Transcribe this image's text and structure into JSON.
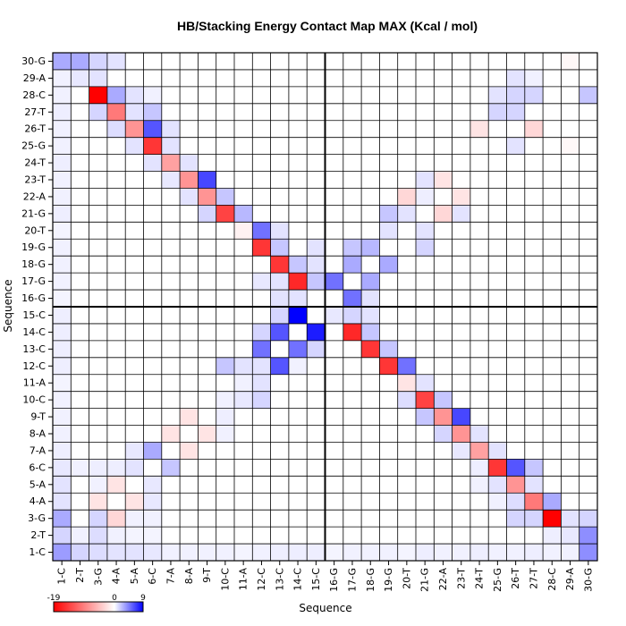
{
  "chart_data": {
    "type": "heatmap",
    "title": "HB/Stacking Energy Contact Map MAX (Kcal / mol)",
    "xlabel": "Sequence",
    "ylabel": "Sequence",
    "labels": [
      "1-C",
      "2-T",
      "3-G",
      "4-A",
      "5-A",
      "6-C",
      "7-A",
      "8-A",
      "9-T",
      "10-C",
      "11-A",
      "12-C",
      "13-C",
      "14-C",
      "15-C",
      "16-G",
      "17-G",
      "18-G",
      "19-G",
      "20-T",
      "21-G",
      "22-A",
      "23-T",
      "24-T",
      "25-G",
      "26-T",
      "27-T",
      "28-C",
      "29-A",
      "30-G"
    ],
    "colorbar": {
      "min": -19,
      "mid": 0,
      "max": 9,
      "tick_labels": [
        "-19",
        "0",
        "9"
      ]
    },
    "colors": {
      "negative": "#ff0000",
      "zero": "#ffffff",
      "positive": "#0000ff"
    },
    "grid": true,
    "divider_after_index": 15,
    "cells": [
      [
        1,
        1,
        3.5
      ],
      [
        1,
        2,
        1.5
      ],
      [
        1,
        3,
        1.2
      ],
      [
        1,
        4,
        1
      ],
      [
        1,
        5,
        1
      ],
      [
        1,
        6,
        0.8
      ],
      [
        1,
        7,
        0.5
      ],
      [
        1,
        8,
        0.5
      ],
      [
        1,
        9,
        0.5
      ],
      [
        1,
        10,
        0.5
      ],
      [
        1,
        11,
        0.4
      ],
      [
        1,
        12,
        0.5
      ],
      [
        1,
        13,
        0.6
      ],
      [
        1,
        14,
        0.6
      ],
      [
        1,
        15,
        0.6
      ],
      [
        1,
        16,
        0.4
      ],
      [
        1,
        17,
        0.5
      ],
      [
        1,
        18,
        0.5
      ],
      [
        1,
        19,
        0.5
      ],
      [
        1,
        20,
        0.4
      ],
      [
        1,
        21,
        0.6
      ],
      [
        1,
        22,
        0.5
      ],
      [
        1,
        23,
        0.5
      ],
      [
        1,
        24,
        0.6
      ],
      [
        1,
        25,
        0.5
      ],
      [
        1,
        26,
        0.5
      ],
      [
        1,
        27,
        0.6
      ],
      [
        1,
        28,
        0.5
      ],
      [
        1,
        29,
        0.5
      ],
      [
        1,
        30,
        4
      ],
      [
        2,
        1,
        1.5
      ],
      [
        2,
        2,
        0.5
      ],
      [
        2,
        3,
        1.2
      ],
      [
        2,
        4,
        0.5
      ],
      [
        2,
        5,
        0.4
      ],
      [
        2,
        6,
        0.4
      ],
      [
        2,
        28,
        0.6
      ],
      [
        2,
        29,
        0.8
      ],
      [
        2,
        30,
        4
      ],
      [
        3,
        1,
        3
      ],
      [
        3,
        3,
        1.5
      ],
      [
        3,
        4,
        -3
      ],
      [
        3,
        5,
        0.5
      ],
      [
        3,
        6,
        0.5
      ],
      [
        3,
        26,
        1.5
      ],
      [
        3,
        27,
        1.5
      ],
      [
        3,
        28,
        -19
      ],
      [
        3,
        29,
        1
      ],
      [
        3,
        30,
        1.5
      ],
      [
        4,
        1,
        1
      ],
      [
        4,
        3,
        -2
      ],
      [
        4,
        5,
        -2
      ],
      [
        4,
        6,
        0.8
      ],
      [
        4,
        25,
        0.5
      ],
      [
        4,
        26,
        1.2
      ],
      [
        4,
        27,
        -10
      ],
      [
        4,
        28,
        3
      ],
      [
        5,
        1,
        1
      ],
      [
        5,
        3,
        0.5
      ],
      [
        5,
        4,
        -2
      ],
      [
        5,
        6,
        0.8
      ],
      [
        5,
        24,
        0.5
      ],
      [
        5,
        25,
        1
      ],
      [
        5,
        26,
        -8
      ],
      [
        5,
        27,
        1
      ],
      [
        6,
        1,
        0.8
      ],
      [
        6,
        2,
        0.5
      ],
      [
        6,
        3,
        0.6
      ],
      [
        6,
        4,
        0.6
      ],
      [
        6,
        5,
        1
      ],
      [
        6,
        7,
        2
      ],
      [
        6,
        24,
        0.6
      ],
      [
        6,
        25,
        -15
      ],
      [
        6,
        26,
        6
      ],
      [
        6,
        27,
        2
      ],
      [
        7,
        1,
        0.6
      ],
      [
        7,
        5,
        0.8
      ],
      [
        7,
        6,
        3
      ],
      [
        7,
        8,
        -2
      ],
      [
        7,
        23,
        0.8
      ],
      [
        7,
        24,
        -7
      ],
      [
        7,
        25,
        1
      ],
      [
        8,
        1,
        0.5
      ],
      [
        8,
        7,
        -2
      ],
      [
        8,
        9,
        -2
      ],
      [
        8,
        10,
        0.5
      ],
      [
        8,
        22,
        1.5
      ],
      [
        8,
        23,
        -8
      ],
      [
        8,
        24,
        1
      ],
      [
        9,
        1,
        0.5
      ],
      [
        9,
        8,
        -2
      ],
      [
        9,
        10,
        0.6
      ],
      [
        9,
        21,
        2
      ],
      [
        9,
        22,
        -8
      ],
      [
        9,
        23,
        6.5
      ],
      [
        10,
        1,
        0.5
      ],
      [
        10,
        10,
        0.5
      ],
      [
        10,
        11,
        0.8
      ],
      [
        10,
        12,
        1.5
      ],
      [
        10,
        20,
        1.2
      ],
      [
        10,
        21,
        -14
      ],
      [
        10,
        22,
        2
      ],
      [
        11,
        1,
        0.4
      ],
      [
        11,
        11,
        0.5
      ],
      [
        11,
        12,
        1
      ],
      [
        11,
        20,
        -2
      ],
      [
        11,
        21,
        1
      ],
      [
        12,
        1,
        0.6
      ],
      [
        12,
        10,
        2
      ],
      [
        12,
        11,
        1
      ],
      [
        12,
        12,
        1
      ],
      [
        12,
        13,
        6
      ],
      [
        12,
        14,
        0.5
      ],
      [
        12,
        19,
        -15
      ],
      [
        12,
        20,
        5
      ],
      [
        13,
        1,
        0.6
      ],
      [
        13,
        12,
        5
      ],
      [
        13,
        14,
        5
      ],
      [
        13,
        15,
        1.5
      ],
      [
        13,
        18,
        -15
      ],
      [
        13,
        19,
        2
      ],
      [
        14,
        1,
        0.6
      ],
      [
        14,
        12,
        1.5
      ],
      [
        14,
        13,
        6
      ],
      [
        14,
        15,
        8
      ],
      [
        14,
        17,
        -16
      ],
      [
        14,
        18,
        2
      ],
      [
        15,
        1,
        0.6
      ],
      [
        15,
        13,
        1.5
      ],
      [
        15,
        14,
        9
      ],
      [
        15,
        16,
        0.8
      ],
      [
        15,
        17,
        1.5
      ],
      [
        15,
        18,
        1
      ],
      [
        16,
        1,
        0.4
      ],
      [
        16,
        13,
        1
      ],
      [
        16,
        14,
        1
      ],
      [
        16,
        17,
        5
      ],
      [
        16,
        18,
        1
      ],
      [
        17,
        1,
        0.5
      ],
      [
        17,
        12,
        0.8
      ],
      [
        17,
        13,
        1
      ],
      [
        17,
        14,
        -16
      ],
      [
        17,
        15,
        2
      ],
      [
        17,
        16,
        5
      ],
      [
        17,
        18,
        3
      ],
      [
        18,
        1,
        0.5
      ],
      [
        18,
        13,
        -15
      ],
      [
        18,
        14,
        2
      ],
      [
        18,
        15,
        1
      ],
      [
        18,
        17,
        3
      ],
      [
        18,
        19,
        3
      ],
      [
        19,
        1,
        0.5
      ],
      [
        19,
        12,
        -15
      ],
      [
        19,
        13,
        2
      ],
      [
        19,
        15,
        1
      ],
      [
        19,
        17,
        2
      ],
      [
        19,
        18,
        2.5
      ],
      [
        19,
        21,
        1.5
      ],
      [
        20,
        1,
        0.4
      ],
      [
        20,
        11,
        -1
      ],
      [
        20,
        12,
        5
      ],
      [
        20,
        13,
        1
      ],
      [
        20,
        19,
        1
      ],
      [
        20,
        21,
        1
      ],
      [
        21,
        1,
        0.6
      ],
      [
        21,
        9,
        1.5
      ],
      [
        21,
        10,
        -14
      ],
      [
        21,
        11,
        2.5
      ],
      [
        21,
        19,
        2
      ],
      [
        21,
        20,
        1
      ],
      [
        21,
        22,
        -3
      ],
      [
        21,
        23,
        1
      ],
      [
        22,
        1,
        0.5
      ],
      [
        22,
        8,
        1
      ],
      [
        22,
        9,
        -8
      ],
      [
        22,
        10,
        2
      ],
      [
        22,
        20,
        -3
      ],
      [
        22,
        21,
        0.6
      ],
      [
        22,
        23,
        -2
      ],
      [
        23,
        1,
        0.5
      ],
      [
        23,
        7,
        0.8
      ],
      [
        23,
        8,
        -8
      ],
      [
        23,
        9,
        6.5
      ],
      [
        23,
        21,
        1
      ],
      [
        23,
        22,
        -2
      ],
      [
        24,
        1,
        0.6
      ],
      [
        24,
        6,
        1
      ],
      [
        24,
        7,
        -7
      ],
      [
        24,
        8,
        1
      ],
      [
        25,
        1,
        0.5
      ],
      [
        25,
        5,
        1
      ],
      [
        25,
        6,
        -15
      ],
      [
        25,
        7,
        1
      ],
      [
        25,
        26,
        1
      ],
      [
        25,
        29,
        -0.5
      ],
      [
        26,
        1,
        0.5
      ],
      [
        26,
        4,
        1.2
      ],
      [
        26,
        5,
        -8
      ],
      [
        26,
        6,
        6
      ],
      [
        26,
        7,
        1
      ],
      [
        26,
        24,
        -2
      ],
      [
        26,
        27,
        -3
      ],
      [
        27,
        1,
        0.6
      ],
      [
        27,
        3,
        1.5
      ],
      [
        27,
        4,
        -10
      ],
      [
        27,
        5,
        1
      ],
      [
        27,
        6,
        2
      ],
      [
        27,
        25,
        1.5
      ],
      [
        27,
        26,
        1.5
      ],
      [
        28,
        1,
        0.5
      ],
      [
        28,
        3,
        -19
      ],
      [
        28,
        4,
        3
      ],
      [
        28,
        5,
        1
      ],
      [
        28,
        6,
        0.5
      ],
      [
        28,
        25,
        1
      ],
      [
        28,
        26,
        1.5
      ],
      [
        28,
        27,
        1.5
      ],
      [
        28,
        30,
        2
      ],
      [
        29,
        1,
        0.5
      ],
      [
        29,
        2,
        0.8
      ],
      [
        29,
        3,
        1
      ],
      [
        29,
        26,
        1
      ],
      [
        29,
        27,
        0.5
      ],
      [
        30,
        1,
        3
      ],
      [
        30,
        2,
        3
      ],
      [
        30,
        3,
        1.5
      ],
      [
        30,
        4,
        1
      ],
      [
        30,
        29,
        -0.5
      ]
    ]
  }
}
